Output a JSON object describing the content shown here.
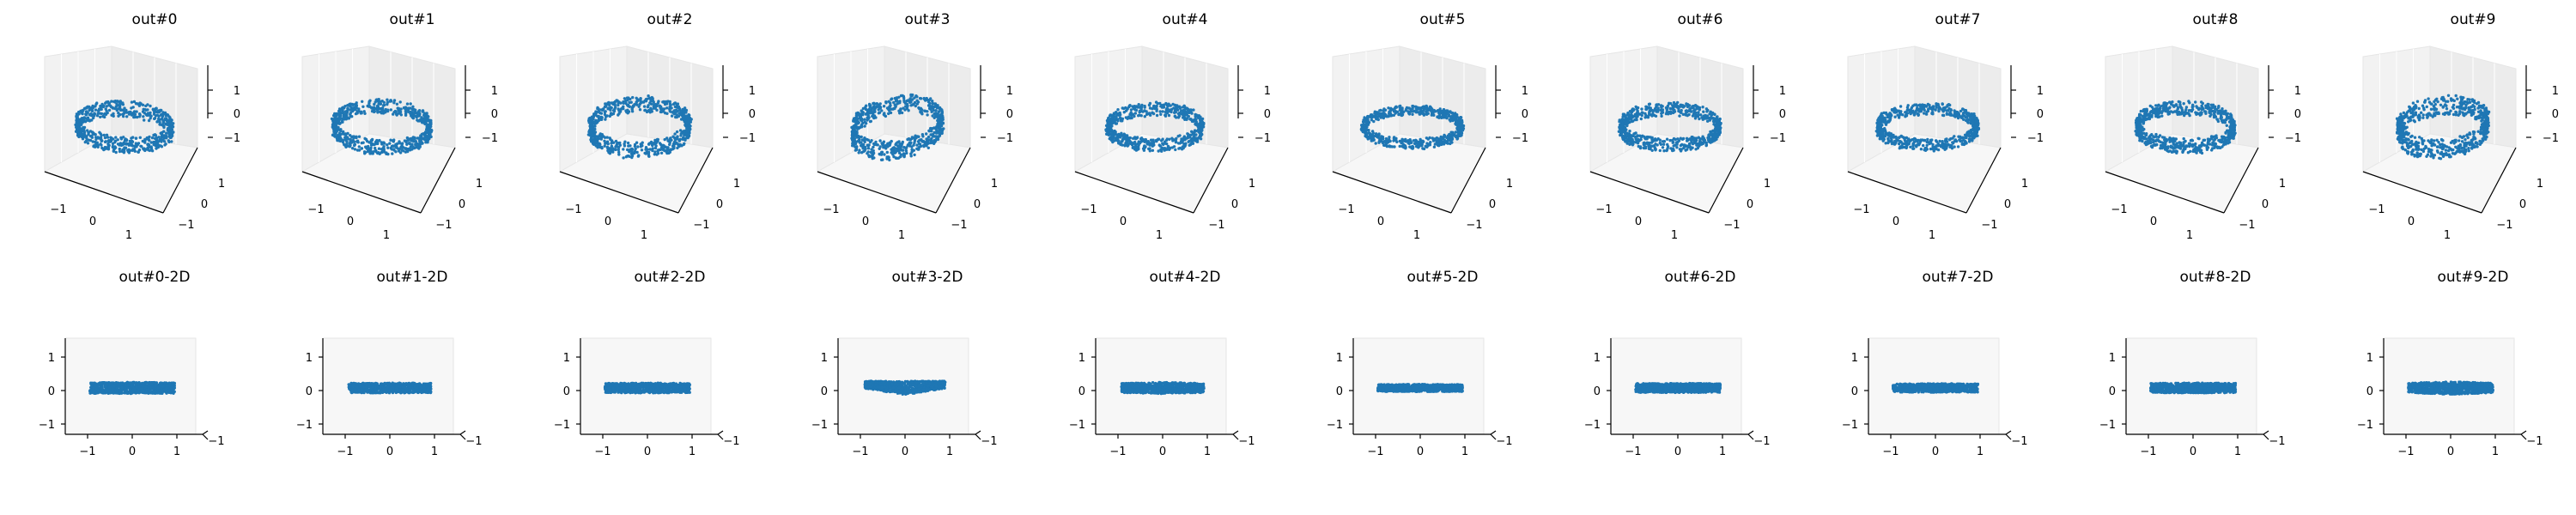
{
  "colors": {
    "points": "#1f77b4",
    "pane": "#f2f2f2",
    "axis": "#000000"
  },
  "chart_data": {
    "type": "scatter",
    "layout": "2 rows x 10 panels (3D scatter views of ring-shaped point clouds)",
    "panels_3d": [
      {
        "title": "out#0",
        "x_ticks": [
          "−1",
          "0",
          "1"
        ],
        "y_ticks": [
          "−1",
          "0",
          "1"
        ],
        "z_ticks": [
          "1",
          "0",
          "−1"
        ],
        "ring": {
          "rx": 0.78,
          "ry": 0.3,
          "thickness": 0.26,
          "tilt": 0.04
        }
      },
      {
        "title": "out#1",
        "x_ticks": [
          "−1",
          "0",
          "1"
        ],
        "y_ticks": [
          "−1",
          "0",
          "1"
        ],
        "z_ticks": [
          "1",
          "0",
          "−1"
        ],
        "ring": {
          "rx": 0.8,
          "ry": 0.34,
          "thickness": 0.24,
          "tilt": 0.02
        }
      },
      {
        "title": "out#2",
        "x_ticks": [
          "−1",
          "0",
          "1"
        ],
        "y_ticks": [
          "−1",
          "0",
          "1"
        ],
        "z_ticks": [
          "1",
          "0",
          "−1"
        ],
        "ring": {
          "rx": 0.82,
          "ry": 0.38,
          "thickness": 0.26,
          "tilt": -0.02
        }
      },
      {
        "title": "out#3",
        "x_ticks": [
          "−1",
          "0",
          "1"
        ],
        "y_ticks": [
          "−1",
          "0",
          "1"
        ],
        "z_ticks": [
          "1",
          "0",
          "−1"
        ],
        "ring": {
          "rx": 0.74,
          "ry": 0.38,
          "thickness": 0.3,
          "tilt": -0.1
        }
      },
      {
        "title": "out#4",
        "x_ticks": [
          "−1",
          "0",
          "1"
        ],
        "y_ticks": [
          "−1",
          "0",
          "1"
        ],
        "z_ticks": [
          "1",
          "0",
          "−1"
        ],
        "ring": {
          "rx": 0.78,
          "ry": 0.3,
          "thickness": 0.22,
          "tilt": 0.0
        }
      },
      {
        "title": "out#5",
        "x_ticks": [
          "−1",
          "0",
          "1"
        ],
        "y_ticks": [
          "−1",
          "0",
          "1"
        ],
        "z_ticks": [
          "1",
          "0",
          "−1"
        ],
        "ring": {
          "rx": 0.82,
          "ry": 0.28,
          "thickness": 0.16,
          "tilt": 0.0
        }
      },
      {
        "title": "out#6",
        "x_ticks": [
          "−1",
          "0",
          "1"
        ],
        "y_ticks": [
          "−1",
          "0",
          "1"
        ],
        "z_ticks": [
          "1",
          "0",
          "−1"
        ],
        "ring": {
          "rx": 0.82,
          "ry": 0.3,
          "thickness": 0.22,
          "tilt": 0.0
        }
      },
      {
        "title": "out#7",
        "x_ticks": [
          "−1",
          "0",
          "1"
        ],
        "y_ticks": [
          "−1",
          "0",
          "1"
        ],
        "z_ticks": [
          "1",
          "0",
          "−1"
        ],
        "ring": {
          "rx": 0.82,
          "ry": 0.3,
          "thickness": 0.2,
          "tilt": 0.0
        }
      },
      {
        "title": "out#8",
        "x_ticks": [
          "−1",
          "0",
          "1"
        ],
        "y_ticks": [
          "−1",
          "0",
          "1"
        ],
        "z_ticks": [
          "1",
          "0",
          "−1"
        ],
        "ring": {
          "rx": 0.8,
          "ry": 0.32,
          "thickness": 0.24,
          "tilt": 0.02
        }
      },
      {
        "title": "out#9",
        "x_ticks": [
          "−1",
          "0",
          "1"
        ],
        "y_ticks": [
          "−1",
          "0",
          "1"
        ],
        "z_ticks": [
          "1",
          "0",
          "−1"
        ],
        "ring": {
          "rx": 0.74,
          "ry": 0.36,
          "thickness": 0.32,
          "tilt": -0.06
        }
      }
    ],
    "panels_2d": [
      {
        "title": "out#0-2D",
        "x_ticks": [
          "−1",
          "0",
          "1"
        ],
        "y_ticks": [
          "1",
          "0",
          "−1"
        ],
        "corner_tick": "−1",
        "band": {
          "half_width": 0.95,
          "half_height": 0.17,
          "taper": 0.05
        }
      },
      {
        "title": "out#1-2D",
        "x_ticks": [
          "−1",
          "0",
          "1"
        ],
        "y_ticks": [
          "1",
          "0",
          "−1"
        ],
        "corner_tick": "−1",
        "band": {
          "half_width": 0.92,
          "half_height": 0.15,
          "taper": 0.05
        }
      },
      {
        "title": "out#2-2D",
        "x_ticks": [
          "−1",
          "0",
          "1"
        ],
        "y_ticks": [
          "1",
          "0",
          "−1"
        ],
        "corner_tick": "−1",
        "band": {
          "half_width": 0.95,
          "half_height": 0.15,
          "taper": 0.05
        }
      },
      {
        "title": "out#3-2D",
        "x_ticks": [
          "−1",
          "0",
          "1"
        ],
        "y_ticks": [
          "1",
          "0",
          "−1"
        ],
        "corner_tick": "−1",
        "band": {
          "half_width": 0.9,
          "half_height": 0.2,
          "taper": 0.45
        }
      },
      {
        "title": "out#4-2D",
        "x_ticks": [
          "−1",
          "0",
          "1"
        ],
        "y_ticks": [
          "1",
          "0",
          "−1"
        ],
        "corner_tick": "−1",
        "band": {
          "half_width": 0.93,
          "half_height": 0.17,
          "taper": 0.2
        }
      },
      {
        "title": "out#5-2D",
        "x_ticks": [
          "−1",
          "0",
          "1"
        ],
        "y_ticks": [
          "1",
          "0",
          "−1"
        ],
        "corner_tick": "−1",
        "band": {
          "half_width": 0.95,
          "half_height": 0.11,
          "taper": 0.05
        }
      },
      {
        "title": "out#6-2D",
        "x_ticks": [
          "−1",
          "0",
          "1"
        ],
        "y_ticks": [
          "1",
          "0",
          "−1"
        ],
        "corner_tick": "−1",
        "band": {
          "half_width": 0.95,
          "half_height": 0.14,
          "taper": 0.05
        }
      },
      {
        "title": "out#7-2D",
        "x_ticks": [
          "−1",
          "0",
          "1"
        ],
        "y_ticks": [
          "1",
          "0",
          "−1"
        ],
        "corner_tick": "−1",
        "band": {
          "half_width": 0.95,
          "half_height": 0.13,
          "taper": 0.05
        }
      },
      {
        "title": "out#8-2D",
        "x_ticks": [
          "−1",
          "0",
          "1"
        ],
        "y_ticks": [
          "1",
          "0",
          "−1"
        ],
        "corner_tick": "−1",
        "band": {
          "half_width": 0.95,
          "half_height": 0.15,
          "taper": 0.05
        }
      },
      {
        "title": "out#9-2D",
        "x_ticks": [
          "−1",
          "0",
          "1"
        ],
        "y_ticks": [
          "1",
          "0",
          "−1"
        ],
        "corner_tick": "−1",
        "band": {
          "half_width": 0.95,
          "half_height": 0.19,
          "taper": 0.25
        }
      }
    ],
    "axis_range": [
      -1.5,
      1.5
    ],
    "grid": true
  }
}
